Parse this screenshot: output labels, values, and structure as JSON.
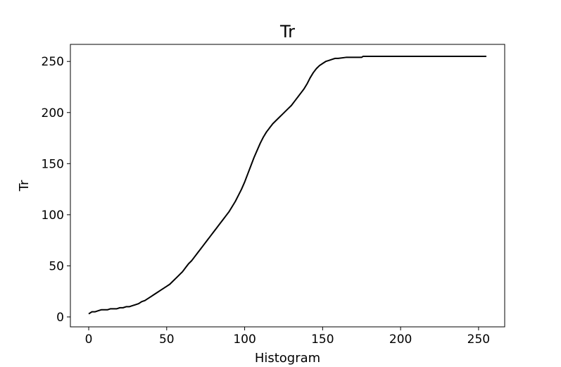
{
  "chart_data": {
    "type": "line",
    "title": "Tr",
    "xlabel": "Histogram",
    "ylabel": "Tr",
    "xlim": [
      -11.75,
      266.75
    ],
    "ylim": [
      -9.7,
      266.7
    ],
    "xticks": [
      0,
      50,
      100,
      150,
      200,
      250
    ],
    "yticks": [
      0,
      50,
      100,
      150,
      200,
      250
    ],
    "grid": false,
    "line_color": "#000000",
    "series": [
      {
        "points": [
          [
            0,
            3
          ],
          [
            2,
            5
          ],
          [
            4,
            5
          ],
          [
            6,
            6
          ],
          [
            8,
            7
          ],
          [
            10,
            7
          ],
          [
            12,
            7
          ],
          [
            14,
            8
          ],
          [
            16,
            8
          ],
          [
            18,
            8
          ],
          [
            20,
            9
          ],
          [
            22,
            9
          ],
          [
            24,
            10
          ],
          [
            26,
            10
          ],
          [
            28,
            11
          ],
          [
            30,
            12
          ],
          [
            32,
            13
          ],
          [
            34,
            15
          ],
          [
            36,
            16
          ],
          [
            38,
            18
          ],
          [
            40,
            20
          ],
          [
            42,
            22
          ],
          [
            44,
            24
          ],
          [
            46,
            26
          ],
          [
            48,
            28
          ],
          [
            50,
            30
          ],
          [
            52,
            32
          ],
          [
            54,
            35
          ],
          [
            56,
            38
          ],
          [
            58,
            41
          ],
          [
            60,
            44
          ],
          [
            62,
            48
          ],
          [
            64,
            52
          ],
          [
            66,
            55
          ],
          [
            68,
            59
          ],
          [
            70,
            63
          ],
          [
            72,
            67
          ],
          [
            74,
            71
          ],
          [
            76,
            75
          ],
          [
            78,
            79
          ],
          [
            80,
            83
          ],
          [
            82,
            87
          ],
          [
            84,
            91
          ],
          [
            86,
            95
          ],
          [
            88,
            99
          ],
          [
            90,
            103
          ],
          [
            92,
            108
          ],
          [
            94,
            113
          ],
          [
            96,
            119
          ],
          [
            98,
            125
          ],
          [
            100,
            132
          ],
          [
            102,
            140
          ],
          [
            104,
            148
          ],
          [
            106,
            156
          ],
          [
            108,
            163
          ],
          [
            110,
            170
          ],
          [
            112,
            176
          ],
          [
            114,
            181
          ],
          [
            116,
            185
          ],
          [
            118,
            189
          ],
          [
            120,
            192
          ],
          [
            122,
            195
          ],
          [
            124,
            198
          ],
          [
            126,
            201
          ],
          [
            128,
            204
          ],
          [
            130,
            207
          ],
          [
            132,
            211
          ],
          [
            134,
            215
          ],
          [
            136,
            219
          ],
          [
            138,
            223
          ],
          [
            140,
            228
          ],
          [
            142,
            234
          ],
          [
            144,
            239
          ],
          [
            146,
            243
          ],
          [
            148,
            246
          ],
          [
            150,
            248
          ],
          [
            152,
            250
          ],
          [
            154,
            251
          ],
          [
            156,
            252
          ],
          [
            158,
            253
          ],
          [
            160,
            253
          ],
          [
            165,
            254
          ],
          [
            170,
            254
          ],
          [
            175,
            254
          ],
          [
            176,
            255
          ],
          [
            180,
            255
          ],
          [
            200,
            255
          ],
          [
            220,
            255
          ],
          [
            240,
            255
          ],
          [
            255,
            255
          ]
        ]
      }
    ]
  }
}
